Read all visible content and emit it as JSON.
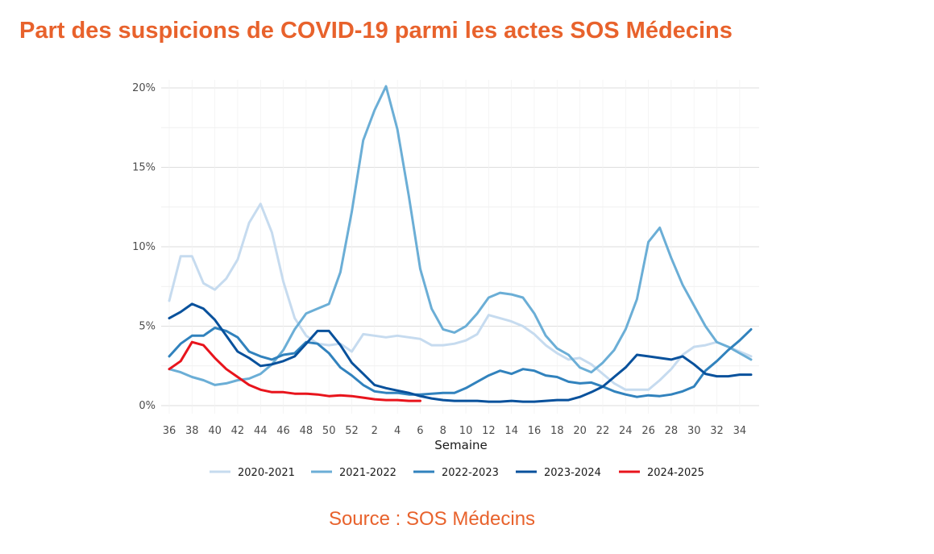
{
  "title": "Part des suspicions de COVID-19 parmi les actes SOS Médecins",
  "source": "Source : SOS Médecins",
  "chart_data": {
    "type": "line",
    "title": "Part des suspicions de COVID-19 parmi les actes SOS Médecins",
    "xlabel": "Semaine",
    "ylabel": "",
    "ylim": [
      0,
      20
    ],
    "y_ticks": [
      "0%",
      "5%",
      "10%",
      "15%",
      "20%"
    ],
    "y_tick_values": [
      0,
      5,
      10,
      15,
      20
    ],
    "x_ticks": [
      "36",
      "38",
      "40",
      "42",
      "44",
      "46",
      "48",
      "50",
      "52",
      "2",
      "4",
      "6",
      "8",
      "10",
      "12",
      "14",
      "16",
      "18",
      "20",
      "22",
      "24",
      "26",
      "28",
      "30",
      "32",
      "34"
    ],
    "x_tick_index": [
      0,
      2,
      4,
      6,
      8,
      10,
      12,
      14,
      16,
      18,
      20,
      22,
      24,
      26,
      28,
      30,
      32,
      34,
      36,
      38,
      40,
      42,
      44,
      46,
      48,
      50
    ],
    "x_weeks": [
      36,
      37,
      38,
      39,
      40,
      41,
      42,
      43,
      44,
      45,
      46,
      47,
      48,
      49,
      50,
      51,
      52,
      1,
      2,
      3,
      4,
      5,
      6,
      7,
      8,
      9,
      10,
      11,
      12,
      13,
      14,
      15,
      16,
      17,
      18,
      19,
      20,
      21,
      22,
      23,
      24,
      25,
      26,
      27,
      28,
      29,
      30,
      31,
      32,
      33,
      34,
      35
    ],
    "legend_position": "bottom",
    "grid": true,
    "series": [
      {
        "name": "2020-2021",
        "color": "#c6dbef",
        "values": [
          6.6,
          9.4,
          9.4,
          7.7,
          7.3,
          8.0,
          9.2,
          11.5,
          12.7,
          10.9,
          7.8,
          5.5,
          4.4,
          3.9,
          3.8,
          3.9,
          3.4,
          4.5,
          4.4,
          4.3,
          4.4,
          4.3,
          4.2,
          3.8,
          3.8,
          3.9,
          4.1,
          4.5,
          5.7,
          5.5,
          5.3,
          5.0,
          4.5,
          3.8,
          3.3,
          2.9,
          3.0,
          2.6,
          2.0,
          1.4,
          1.0,
          1.0,
          1.0,
          1.6,
          2.3,
          3.2,
          3.7,
          3.8,
          4.0,
          3.7,
          3.4,
          3.1
        ]
      },
      {
        "name": "2021-2022",
        "color": "#6baed6",
        "values": [
          2.3,
          2.1,
          1.8,
          1.6,
          1.3,
          1.4,
          1.6,
          1.7,
          2.0,
          2.6,
          3.5,
          4.8,
          5.8,
          6.1,
          6.4,
          8.4,
          12.2,
          16.7,
          18.6,
          20.1,
          17.4,
          13.2,
          8.6,
          6.1,
          4.8,
          4.6,
          5.0,
          5.8,
          6.8,
          7.1,
          7.0,
          6.8,
          5.8,
          4.4,
          3.6,
          3.2,
          2.4,
          2.1,
          2.7,
          3.5,
          4.8,
          6.7,
          10.3,
          11.2,
          9.3,
          7.6,
          6.3,
          5.0,
          4.0,
          3.7,
          3.3,
          2.9
        ]
      },
      {
        "name": "2022-2023",
        "color": "#3182bd",
        "values": [
          3.1,
          3.9,
          4.4,
          4.4,
          4.9,
          4.7,
          4.3,
          3.4,
          3.1,
          2.9,
          3.2,
          3.3,
          4.0,
          3.9,
          3.3,
          2.4,
          1.9,
          1.3,
          0.9,
          0.8,
          0.8,
          0.7,
          0.7,
          0.75,
          0.8,
          0.8,
          1.1,
          1.5,
          1.9,
          2.2,
          2.0,
          2.3,
          2.2,
          1.9,
          1.8,
          1.5,
          1.4,
          1.45,
          1.2,
          0.9,
          0.7,
          0.55,
          0.65,
          0.6,
          0.7,
          0.9,
          1.2,
          2.2,
          2.8,
          3.5,
          4.1,
          4.8
        ]
      },
      {
        "name": "2023-2024",
        "color": "#08519c",
        "values": [
          5.5,
          5.9,
          6.4,
          6.1,
          5.4,
          4.4,
          3.4,
          3.0,
          2.5,
          2.6,
          2.8,
          3.1,
          3.9,
          4.7,
          4.7,
          3.8,
          2.7,
          2.0,
          1.3,
          1.1,
          0.95,
          0.8,
          0.6,
          0.45,
          0.35,
          0.3,
          0.3,
          0.3,
          0.25,
          0.25,
          0.3,
          0.25,
          0.25,
          0.3,
          0.35,
          0.35,
          0.55,
          0.85,
          1.2,
          1.8,
          2.4,
          3.2,
          3.1,
          3.0,
          2.9,
          3.1,
          2.6,
          2.0,
          1.85,
          1.85,
          1.95,
          1.95
        ]
      },
      {
        "name": "2024-2025",
        "color": "#e8141c",
        "values": [
          2.3,
          2.8,
          4.0,
          3.8,
          3.0,
          2.3,
          1.8,
          1.3,
          1.0,
          0.85,
          0.85,
          0.75,
          0.75,
          0.7,
          0.6,
          0.65,
          0.6,
          0.5,
          0.4,
          0.35,
          0.35,
          0.3,
          0.3,
          null,
          null,
          null,
          null,
          null,
          null,
          null,
          null,
          null,
          null,
          null,
          null,
          null,
          null,
          null,
          null,
          null,
          null,
          null,
          null,
          null,
          null,
          null,
          null,
          null,
          null,
          null,
          null,
          null
        ]
      }
    ]
  }
}
